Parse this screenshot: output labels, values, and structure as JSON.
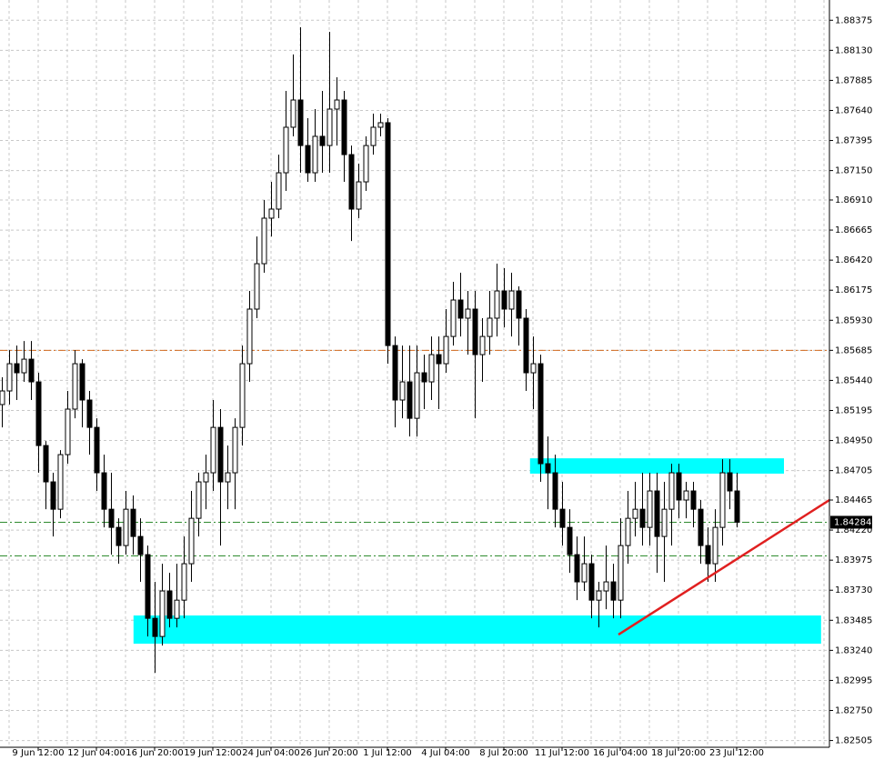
{
  "chart_data": {
    "type": "candlestick",
    "categories": [
      null,
      null,
      null,
      null,
      null,
      "9 Jun 12:00",
      null,
      null,
      null,
      null,
      null,
      null,
      null,
      "12 Jun 04:00",
      null,
      null,
      null,
      null,
      null,
      null,
      null,
      "16 Jun 20:00",
      null,
      null,
      null,
      null,
      null,
      null,
      null,
      "19 Jun 12:00",
      null,
      null,
      null,
      null,
      null,
      null,
      null,
      "24 Jun 04:00",
      null,
      null,
      null,
      null,
      null,
      null,
      null,
      "26 Jun 20:00",
      null,
      null,
      null,
      null,
      null,
      null,
      null,
      "1 Jul 12:00",
      null,
      null,
      null,
      null,
      null,
      null,
      null,
      "4 Jul 04:00",
      null,
      null,
      null,
      null,
      null,
      null,
      null,
      "8 Jul 20:00",
      null,
      null,
      null,
      null,
      null,
      null,
      null,
      "11 Jul 12:00",
      null,
      null,
      null,
      null,
      null,
      null,
      null,
      "16 Jul 04:00",
      null,
      null,
      null,
      null,
      null,
      null,
      null,
      "18 Jul 20:00",
      null,
      null,
      null,
      null,
      null,
      null,
      null,
      "23 Jul 12:00"
    ],
    "open": [
      1.85243,
      1.85354,
      1.85576,
      1.85502,
      1.85613,
      1.85428,
      1.84909,
      1.84613,
      1.8439,
      1.84835,
      1.85206,
      1.85576,
      1.8528,
      1.85057,
      1.84687,
      1.8439,
      1.84242,
      1.84094,
      1.8439,
      1.84168,
      1.8402,
      1.83501,
      1.83353,
      1.83724,
      1.83501,
      1.83649,
      1.83946,
      1.84316,
      1.84613,
      1.84687,
      1.85057,
      1.84613,
      1.84687,
      1.85057,
      1.85576,
      1.86021,
      1.86391,
      1.86762,
      1.86836,
      1.87132,
      1.87503,
      1.87725,
      1.87354,
      1.87132,
      1.87429,
      1.87354,
      1.87651,
      1.87725,
      1.8728,
      1.86836,
      1.87058,
      1.87354,
      1.87503,
      1.8754,
      1.85724,
      1.8528,
      1.85428,
      1.85131,
      1.85502,
      1.85428,
      1.8565,
      1.85576,
      1.85798,
      1.86095,
      1.85947,
      1.86021,
      1.8565,
      1.85798,
      1.85947,
      1.86169,
      1.86021,
      1.86169,
      1.85947,
      1.85502,
      1.85576,
      1.84761,
      1.84687,
      1.8439,
      1.84242,
      1.8402,
      1.83798,
      1.83946,
      1.83649,
      1.83724,
      1.83798,
      1.83649,
      1.84094,
      1.84316,
      1.8439,
      1.84242,
      1.84539,
      1.84168,
      1.8439,
      1.84687,
      1.84465,
      1.84539,
      1.8439,
      1.84094,
      1.83946,
      1.84242,
      1.84687,
      1.84539
    ],
    "high": [
      1.85465,
      1.85687,
      1.85724,
      1.85761,
      1.85761,
      1.85502,
      1.84946,
      1.84687,
      1.84872,
      1.85354,
      1.85687,
      1.85613,
      1.85354,
      1.85131,
      1.84835,
      1.84687,
      1.84316,
      1.84539,
      1.84502,
      1.84316,
      1.84094,
      1.83798,
      1.83946,
      1.83872,
      1.83946,
      1.84168,
      1.84539,
      1.84687,
      1.84835,
      1.8528,
      1.85206,
      1.84909,
      1.85131,
      1.85724,
      1.86169,
      1.86613,
      1.8691,
      1.87058,
      1.8728,
      1.87799,
      1.88096,
      1.88318,
      1.87577,
      1.87651,
      1.87799,
      1.88281,
      1.8791,
      1.87799,
      1.87354,
      1.87206,
      1.87429,
      1.87614,
      1.87614,
      1.87577,
      1.85798,
      1.85724,
      1.85724,
      1.85724,
      1.8565,
      1.85798,
      1.85798,
      1.86021,
      1.86243,
      1.86317,
      1.86169,
      1.86169,
      1.85947,
      1.86169,
      1.86391,
      1.86354,
      1.86317,
      1.86206,
      1.86021,
      1.85798,
      1.8565,
      1.84983,
      1.84835,
      1.84613,
      1.8439,
      1.84168,
      1.84168,
      1.8402,
      1.83798,
      1.84094,
      1.83946,
      1.84316,
      1.84539,
      1.84613,
      1.84687,
      1.84687,
      1.84687,
      1.84613,
      1.84761,
      1.84761,
      1.84613,
      1.84613,
      1.84465,
      1.84242,
      1.8439,
      1.84798,
      1.84798,
      1.84687
    ],
    "low": [
      1.85057,
      1.85243,
      1.8528,
      1.85428,
      1.8528,
      1.84687,
      1.8439,
      1.84168,
      1.84316,
      1.84761,
      1.85131,
      1.85057,
      1.84835,
      1.84539,
      1.84242,
      1.8402,
      1.83946,
      1.8402,
      1.8402,
      1.83798,
      1.83353,
      1.83057,
      1.83279,
      1.83427,
      1.83427,
      1.83501,
      1.83798,
      1.84168,
      1.8439,
      1.84539,
      1.84094,
      1.8439,
      1.8439,
      1.84909,
      1.85428,
      1.85947,
      1.86317,
      1.86613,
      1.86762,
      1.86984,
      1.87429,
      1.87132,
      1.87058,
      1.87058,
      1.87132,
      1.87132,
      1.87354,
      1.87058,
      1.86576,
      1.86762,
      1.86984,
      1.8728,
      1.87429,
      1.85576,
      1.85057,
      1.85131,
      1.84983,
      1.84983,
      1.85206,
      1.8528,
      1.85206,
      1.85502,
      1.85724,
      1.85798,
      1.8565,
      1.85131,
      1.85428,
      1.8565,
      1.85798,
      1.85872,
      1.85798,
      1.85724,
      1.85354,
      1.85206,
      1.84613,
      1.8439,
      1.84242,
      1.84094,
      1.83872,
      1.83649,
      1.83724,
      1.83501,
      1.83427,
      1.83575,
      1.83501,
      1.83501,
      1.83946,
      1.84168,
      1.84094,
      1.84094,
      1.83872,
      1.83798,
      1.84094,
      1.84316,
      1.84316,
      1.84242,
      1.83946,
      1.83798,
      1.83798,
      1.84094,
      1.8439,
      1.84242
    ],
    "close": [
      1.85354,
      1.85576,
      1.85502,
      1.85613,
      1.85428,
      1.84909,
      1.84613,
      1.8439,
      1.84835,
      1.85206,
      1.85576,
      1.8528,
      1.85057,
      1.84687,
      1.8439,
      1.84242,
      1.84094,
      1.8439,
      1.84168,
      1.8402,
      1.83501,
      1.83353,
      1.83724,
      1.83501,
      1.83649,
      1.83946,
      1.84316,
      1.84613,
      1.84687,
      1.85057,
      1.84613,
      1.84687,
      1.85057,
      1.85576,
      1.86021,
      1.86391,
      1.86762,
      1.86836,
      1.87132,
      1.87503,
      1.87725,
      1.87354,
      1.87132,
      1.87429,
      1.87354,
      1.87651,
      1.87725,
      1.8728,
      1.86836,
      1.87058,
      1.87354,
      1.87503,
      1.8754,
      1.85724,
      1.8528,
      1.85428,
      1.85131,
      1.85502,
      1.85428,
      1.8565,
      1.85576,
      1.85798,
      1.86095,
      1.85947,
      1.86021,
      1.8565,
      1.85798,
      1.85947,
      1.86169,
      1.86021,
      1.86169,
      1.85947,
      1.85502,
      1.85576,
      1.84761,
      1.84687,
      1.8439,
      1.84242,
      1.8402,
      1.83798,
      1.83946,
      1.83649,
      1.83724,
      1.83798,
      1.83649,
      1.84094,
      1.84316,
      1.8439,
      1.84242,
      1.84539,
      1.84168,
      1.8439,
      1.84687,
      1.84465,
      1.84539,
      1.8439,
      1.84094,
      1.83946,
      1.84242,
      1.84687,
      1.84539,
      1.84284
    ],
    "ylim": [
      1.8245,
      1.8854
    ],
    "yticks": [
      1.88375,
      {
        "value": 1.8813,
        "label": "1.88130"
      },
      1.87885,
      {
        "value": 1.8764,
        "label": "1.87640"
      },
      1.87395,
      {
        "value": 1.8715,
        "label": "1.87150"
      },
      {
        "value": 1.8691,
        "label": "1.86910"
      },
      1.86665,
      {
        "value": 1.8642,
        "label": "1.86420"
      },
      1.86175,
      {
        "value": 1.8593,
        "label": "1.85930"
      },
      1.85685,
      {
        "value": 1.8544,
        "label": "1.85440"
      },
      1.85195,
      {
        "value": 1.8495,
        "label": "1.84950"
      },
      1.84705,
      1.84465,
      {
        "value": 1.8422,
        "label": "1.84220"
      },
      1.83975,
      {
        "value": 1.8373,
        "label": "1.83730"
      },
      1.83485,
      {
        "value": 1.8324,
        "label": "1.83240"
      },
      1.82995,
      {
        "value": 1.8275,
        "label": "1.82750"
      },
      1.82505
    ],
    "grid": true,
    "current_price": 1.84284,
    "hlines": [
      {
        "value": 1.85685,
        "color": "#d2691e"
      },
      {
        "value": 1.84284,
        "color": "#2e8b2e"
      },
      {
        "value": 1.8401,
        "color": "#2e8b2e"
      }
    ],
    "zones": [
      {
        "from": 1.84805,
        "to": 1.8468,
        "start": 72.6,
        "end": 107.5,
        "color": "#00ffff"
      },
      {
        "from": 1.83524,
        "to": 1.83294,
        "start": 18.1,
        "end": 112.6,
        "color": "#00ffff"
      }
    ],
    "trendline": {
      "start": 84.75,
      "end": 113.75,
      "from": 1.83368,
      "to": 1.84465,
      "color": "#e02020"
    }
  }
}
